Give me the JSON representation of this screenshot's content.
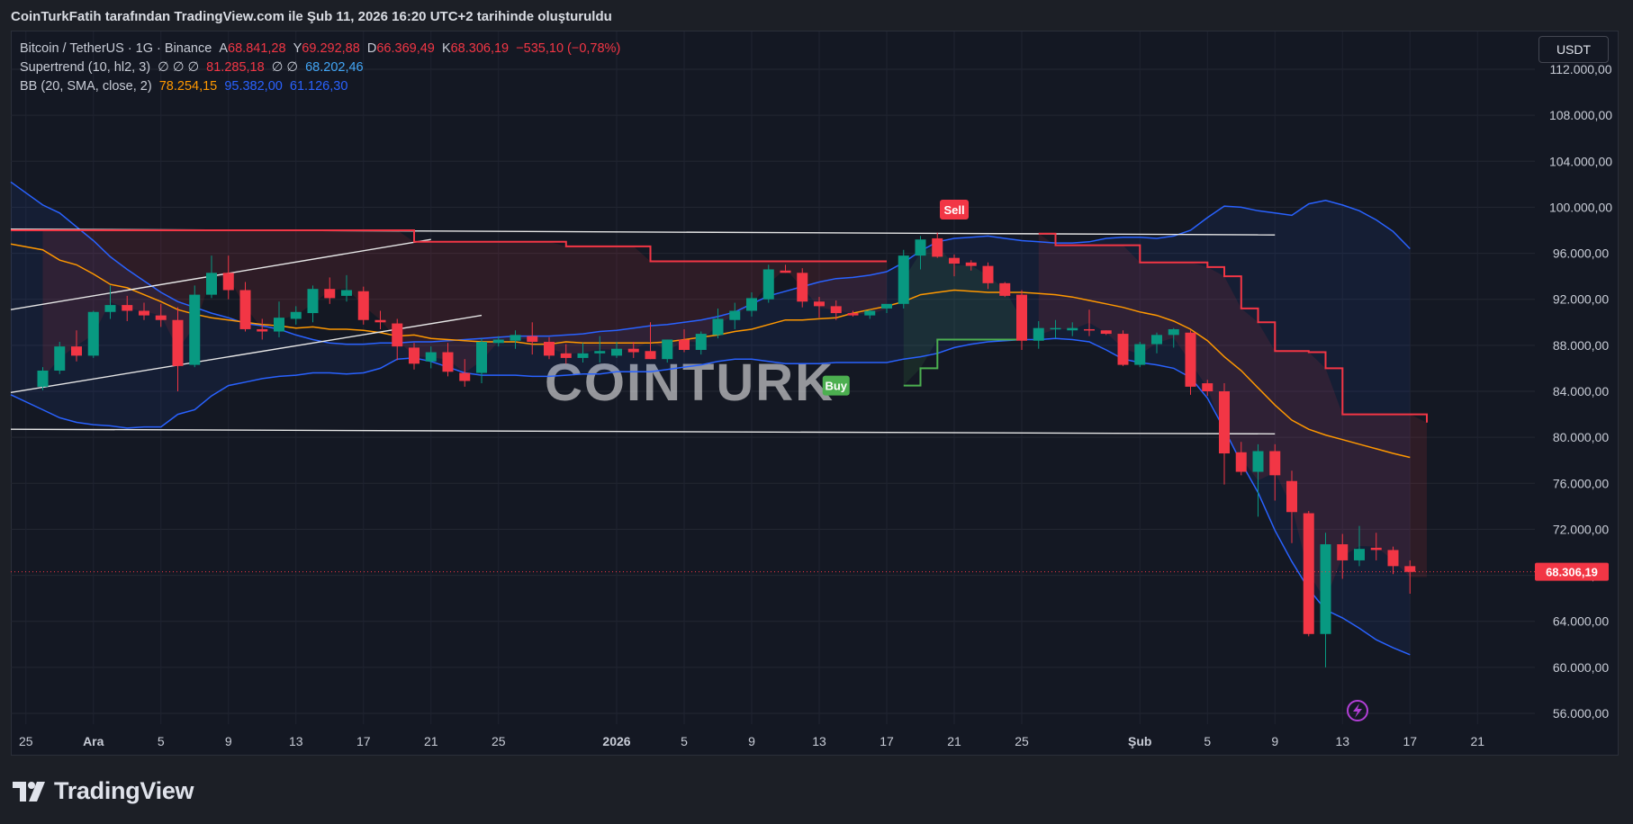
{
  "header": {
    "attribution": "CoinTurkFatih tarafından TradingView.com ile Şub 11, 2026 16:20 UTC+2 tarihinde oluşturuldu"
  },
  "legend": {
    "symbol": "Bitcoin / TetherUS · 1G · Binance",
    "open_label": "A",
    "open": "68.841,28",
    "high_label": "Y",
    "high": "69.292,88",
    "low_label": "D",
    "low": "66.369,49",
    "close_label": "K",
    "close": "68.306,19",
    "change": "−535,10 (−0,78%)",
    "supertrend_name": "Supertrend (10, hl2, 3)",
    "supertrend_empty": "∅  ∅  ∅",
    "supertrend_value": "81.285,18",
    "supertrend_empty2": "∅  ∅",
    "supertrend_value2": "68.202,46",
    "bb_name": "BB (20, SMA, close, 2)",
    "bb_basis": "78.254,15",
    "bb_upper": "95.382,00",
    "bb_lower": "61.126,30"
  },
  "currency_button": "USDT",
  "watermark": "COINTURK",
  "brand": "TradingView",
  "colors": {
    "up": "#089981",
    "down": "#f23645",
    "bb_band": "#2962ff",
    "bb_basis": "#ff9800",
    "supertrend_down": "#f23645",
    "supertrend_up": "#4caf50",
    "trendline": "#e6e6e6",
    "background": "#141823"
  },
  "chart_data": {
    "type": "candlestick",
    "price_axis": {
      "ticks": [
        56000,
        60000,
        64000,
        68000,
        72000,
        76000,
        80000,
        84000,
        88000,
        92000,
        96000,
        100000,
        104000,
        108000,
        112000
      ],
      "tick_labels": [
        "56.000,00",
        "60.000,00",
        "64.000,00",
        "68.000,00",
        "72.000,00",
        "76.000,00",
        "80.000,00",
        "84.000,00",
        "88.000,00",
        "92.000,00",
        "96.000,00",
        "100.000,00",
        "104.000,00",
        "108.000,00",
        "112.000,00"
      ],
      "range": [
        55000,
        115000
      ],
      "current_price": 68306.19,
      "current_price_label": "68.306,19"
    },
    "time_axis": {
      "labels": [
        {
          "text": "25",
          "day": -1
        },
        {
          "text": "Ara",
          "day": 3,
          "bold": true
        },
        {
          "text": "5",
          "day": 7
        },
        {
          "text": "9",
          "day": 11
        },
        {
          "text": "13",
          "day": 15
        },
        {
          "text": "17",
          "day": 19
        },
        {
          "text": "21",
          "day": 23
        },
        {
          "text": "25",
          "day": 27
        },
        {
          "text": "2026",
          "day": 34,
          "bold": true
        },
        {
          "text": "5",
          "day": 38
        },
        {
          "text": "9",
          "day": 42
        },
        {
          "text": "13",
          "day": 46
        },
        {
          "text": "17",
          "day": 50
        },
        {
          "text": "21",
          "day": 54
        },
        {
          "text": "25",
          "day": 58
        },
        {
          "text": "Şub",
          "day": 65,
          "bold": true
        },
        {
          "text": "5",
          "day": 69
        },
        {
          "text": "9",
          "day": 73
        },
        {
          "text": "13",
          "day": 77
        },
        {
          "text": "17",
          "day": 81
        },
        {
          "text": "21",
          "day": 85
        }
      ],
      "day_range": [
        -2.5,
        87.5
      ]
    },
    "candles": [
      [
        84400,
        86100,
        84100,
        85800
      ],
      [
        85800,
        88300,
        85500,
        87900
      ],
      [
        87900,
        89300,
        86600,
        87100
      ],
      [
        87100,
        91000,
        86900,
        90900
      ],
      [
        90900,
        93200,
        90300,
        91500
      ],
      [
        91500,
        92300,
        90100,
        91000
      ],
      [
        91000,
        91700,
        90200,
        90600
      ],
      [
        90600,
        91600,
        89600,
        90200
      ],
      [
        90200,
        91300,
        84000,
        86200
      ],
      [
        86300,
        93200,
        86100,
        92400
      ],
      [
        92400,
        95800,
        92100,
        94300
      ],
      [
        94300,
        95800,
        92000,
        92800
      ],
      [
        92800,
        93500,
        89200,
        89400
      ],
      [
        89400,
        90300,
        88500,
        89200
      ],
      [
        89200,
        91800,
        88700,
        90400
      ],
      [
        90300,
        91400,
        89800,
        90900
      ],
      [
        90800,
        93200,
        90000,
        92900
      ],
      [
        92900,
        93900,
        91600,
        92100
      ],
      [
        92300,
        94100,
        91800,
        92800
      ],
      [
        92700,
        93100,
        89800,
        90200
      ],
      [
        90200,
        91000,
        89400,
        90000
      ],
      [
        89900,
        90300,
        86700,
        87900
      ],
      [
        87800,
        88200,
        85900,
        86400
      ],
      [
        86600,
        87900,
        86000,
        87400
      ],
      [
        87400,
        88200,
        85300,
        85700
      ],
      [
        85600,
        86800,
        84400,
        84900
      ],
      [
        85600,
        88600,
        84700,
        88300
      ],
      [
        88200,
        88800,
        87900,
        88500
      ],
      [
        88400,
        89300,
        87700,
        88900
      ],
      [
        88800,
        90000,
        87200,
        88300
      ],
      [
        88300,
        88700,
        86800,
        87100
      ],
      [
        87300,
        88100,
        86400,
        86900
      ],
      [
        86900,
        88200,
        86500,
        87300
      ],
      [
        87300,
        88800,
        86500,
        87500
      ],
      [
        87100,
        88300,
        86900,
        87700
      ],
      [
        87700,
        88300,
        86900,
        87400
      ],
      [
        87500,
        90000,
        86800,
        86800
      ],
      [
        86800,
        88500,
        86500,
        88500
      ],
      [
        88500,
        89400,
        87400,
        87600
      ],
      [
        87600,
        89200,
        87200,
        89000
      ],
      [
        88900,
        91200,
        88600,
        90300
      ],
      [
        90200,
        91700,
        89400,
        91000
      ],
      [
        91000,
        92600,
        90500,
        92100
      ],
      [
        92000,
        95000,
        91700,
        94600
      ],
      [
        94500,
        95000,
        94300,
        94300
      ],
      [
        94300,
        94700,
        91300,
        91800
      ],
      [
        91800,
        92200,
        90400,
        91400
      ],
      [
        91400,
        91900,
        90200,
        90800
      ],
      [
        90800,
        91000,
        90500,
        90600
      ],
      [
        90600,
        91100,
        90300,
        91000
      ],
      [
        91200,
        91500,
        90800,
        91600
      ],
      [
        91600,
        96300,
        91200,
        95800
      ],
      [
        95800,
        97500,
        94600,
        97200
      ],
      [
        97300,
        97800,
        95600,
        95700
      ],
      [
        95600,
        95900,
        94000,
        95100
      ],
      [
        95200,
        95400,
        94500,
        94900
      ],
      [
        94900,
        95200,
        92900,
        93400
      ],
      [
        93400,
        93500,
        92200,
        92300
      ],
      [
        92400,
        92800,
        87600,
        88400
      ],
      [
        88400,
        90100,
        87700,
        89500
      ],
      [
        89500,
        90200,
        88600,
        89500
      ],
      [
        89300,
        90000,
        88800,
        89500
      ],
      [
        89400,
        91100,
        88800,
        89300
      ],
      [
        89300,
        89300,
        88900,
        89000
      ],
      [
        89000,
        89300,
        86200,
        86300
      ],
      [
        86300,
        88300,
        86100,
        88100
      ],
      [
        88100,
        89100,
        87300,
        88900
      ],
      [
        88900,
        89500,
        87800,
        89400
      ],
      [
        89100,
        89300,
        83700,
        84400
      ],
      [
        84700,
        85000,
        83600,
        84000
      ],
      [
        84000,
        84700,
        75900,
        78600
      ],
      [
        78700,
        79600,
        76700,
        77000
      ],
      [
        77000,
        79400,
        73100,
        78800
      ],
      [
        78800,
        79400,
        74500,
        76700
      ],
      [
        76200,
        77100,
        70800,
        73500
      ],
      [
        73400,
        73600,
        62700,
        62900
      ],
      [
        62900,
        71700,
        60000,
        70700
      ],
      [
        70700,
        71600,
        67700,
        69300
      ],
      [
        69300,
        72300,
        68800,
        70300
      ],
      [
        70400,
        71700,
        69300,
        70200
      ],
      [
        70200,
        70500,
        68100,
        68800
      ],
      [
        68800,
        69300,
        66400,
        68300
      ]
    ],
    "bb_upper": [
      100200,
      99500,
      98300,
      97100,
      95700,
      94600,
      93600,
      92600,
      91800,
      91300,
      90800,
      90400,
      89900,
      89700,
      89400,
      88900,
      88500,
      88200,
      88100,
      88100,
      88200,
      88200,
      88300,
      88300,
      88400,
      88500,
      88600,
      88700,
      88800,
      88800,
      88800,
      88900,
      89000,
      89200,
      89300,
      89500,
      89700,
      89800,
      90000,
      90200,
      90500,
      90900,
      91600,
      92300,
      92700,
      93100,
      93500,
      93800,
      93900,
      94100,
      94400,
      95200,
      96200,
      97000,
      97300,
      97400,
      97500,
      97300,
      97100,
      97000,
      96900,
      96900,
      97000,
      97300,
      97400,
      97400,
      97300,
      97500,
      98000,
      99100,
      100100,
      100000,
      99700,
      99500,
      99300,
      100300,
      100600,
      100200,
      99700,
      98900,
      97900,
      96400
    ],
    "bb_lower": [
      82400,
      81700,
      81300,
      81100,
      81000,
      80800,
      80900,
      80900,
      82000,
      82400,
      83600,
      84500,
      84800,
      85100,
      85300,
      85400,
      85600,
      85600,
      85500,
      85600,
      86000,
      86800,
      86900,
      86600,
      86100,
      85600,
      85400,
      85400,
      85400,
      85300,
      85300,
      85400,
      85500,
      85500,
      85700,
      85700,
      85700,
      85900,
      86100,
      86300,
      86600,
      86800,
      86800,
      86600,
      86400,
      86400,
      86400,
      86500,
      86500,
      86500,
      86500,
      86800,
      87000,
      87300,
      87800,
      88100,
      88300,
      88400,
      88500,
      88500,
      88600,
      88500,
      88300,
      87600,
      86800,
      86500,
      86300,
      86000,
      85200,
      83400,
      80700,
      77800,
      75200,
      71900,
      69200,
      66800,
      65000,
      64300,
      63400,
      62400,
      61700,
      61100
    ],
    "bb_basis": [
      96300,
      95400,
      95000,
      94200,
      93300,
      93000,
      92400,
      91800,
      91100,
      90700,
      90400,
      90200,
      90000,
      89800,
      89700,
      89500,
      89600,
      89400,
      89400,
      89300,
      89100,
      88800,
      88900,
      88600,
      88500,
      88400,
      88300,
      88300,
      88300,
      88100,
      88100,
      88300,
      88200,
      88200,
      88200,
      88200,
      88200,
      88300,
      88500,
      88700,
      88900,
      89200,
      89400,
      89800,
      90200,
      90200,
      90300,
      90400,
      90800,
      91100,
      91400,
      91800,
      92400,
      92600,
      92800,
      92700,
      92600,
      92600,
      92600,
      92500,
      92400,
      92200,
      91900,
      91600,
      91300,
      90900,
      90600,
      90100,
      89400,
      88400,
      87000,
      85800,
      84300,
      82800,
      81500,
      80700,
      80200,
      79800,
      79400,
      79000,
      78600,
      78250
    ],
    "supertrend_down_1": [
      98000,
      98000,
      98000,
      98000,
      98000,
      98000,
      98000,
      98000,
      98000,
      98000,
      98000,
      98000,
      98000,
      98000,
      98000,
      98000,
      98000,
      98000,
      98000,
      98000,
      98000,
      98000,
      97000,
      97000,
      97000,
      97000,
      97000,
      97000,
      97000,
      97000,
      97000,
      96600,
      96600,
      96600,
      96600,
      96600,
      95300,
      95300,
      95300,
      95300,
      95300,
      95300,
      95300,
      95300,
      95300,
      95300,
      95300,
      95300,
      95300,
      95300,
      95300
    ],
    "supertrend_up": [
      84500,
      86000,
      88500,
      88500,
      88500,
      88500,
      88500,
      88500
    ],
    "supertrend_down_2": [
      97700,
      96700,
      96700,
      96700,
      96700,
      96700,
      95200,
      95200,
      95200,
      95200,
      94800,
      94000,
      91200,
      90000,
      87500,
      87500,
      87400,
      86000,
      82000,
      82000,
      82000,
      82000,
      82000,
      81285
    ],
    "trendlines": [
      {
        "day1": -2.5,
        "p1": 91100,
        "day2": 23,
        "p2": 97200,
        "color": "#e6e6e6"
      },
      {
        "day1": -2.5,
        "p1": 83900,
        "day2": 26,
        "p2": 90600,
        "color": "#e6e6e6"
      },
      {
        "day1": -2.5,
        "p1": 98100,
        "day2": 73,
        "p2": 97600,
        "color": "#e6e6e6"
      },
      {
        "day1": -2.5,
        "p1": 80700,
        "day2": 73,
        "p2": 80300,
        "color": "#e6e6e6"
      }
    ],
    "signals": [
      {
        "text": "Sell",
        "day": 54,
        "price": 99800,
        "color": "#f23645"
      },
      {
        "text": "Buy",
        "day": 47,
        "price": 84500,
        "color": "#4caf50"
      }
    ]
  }
}
